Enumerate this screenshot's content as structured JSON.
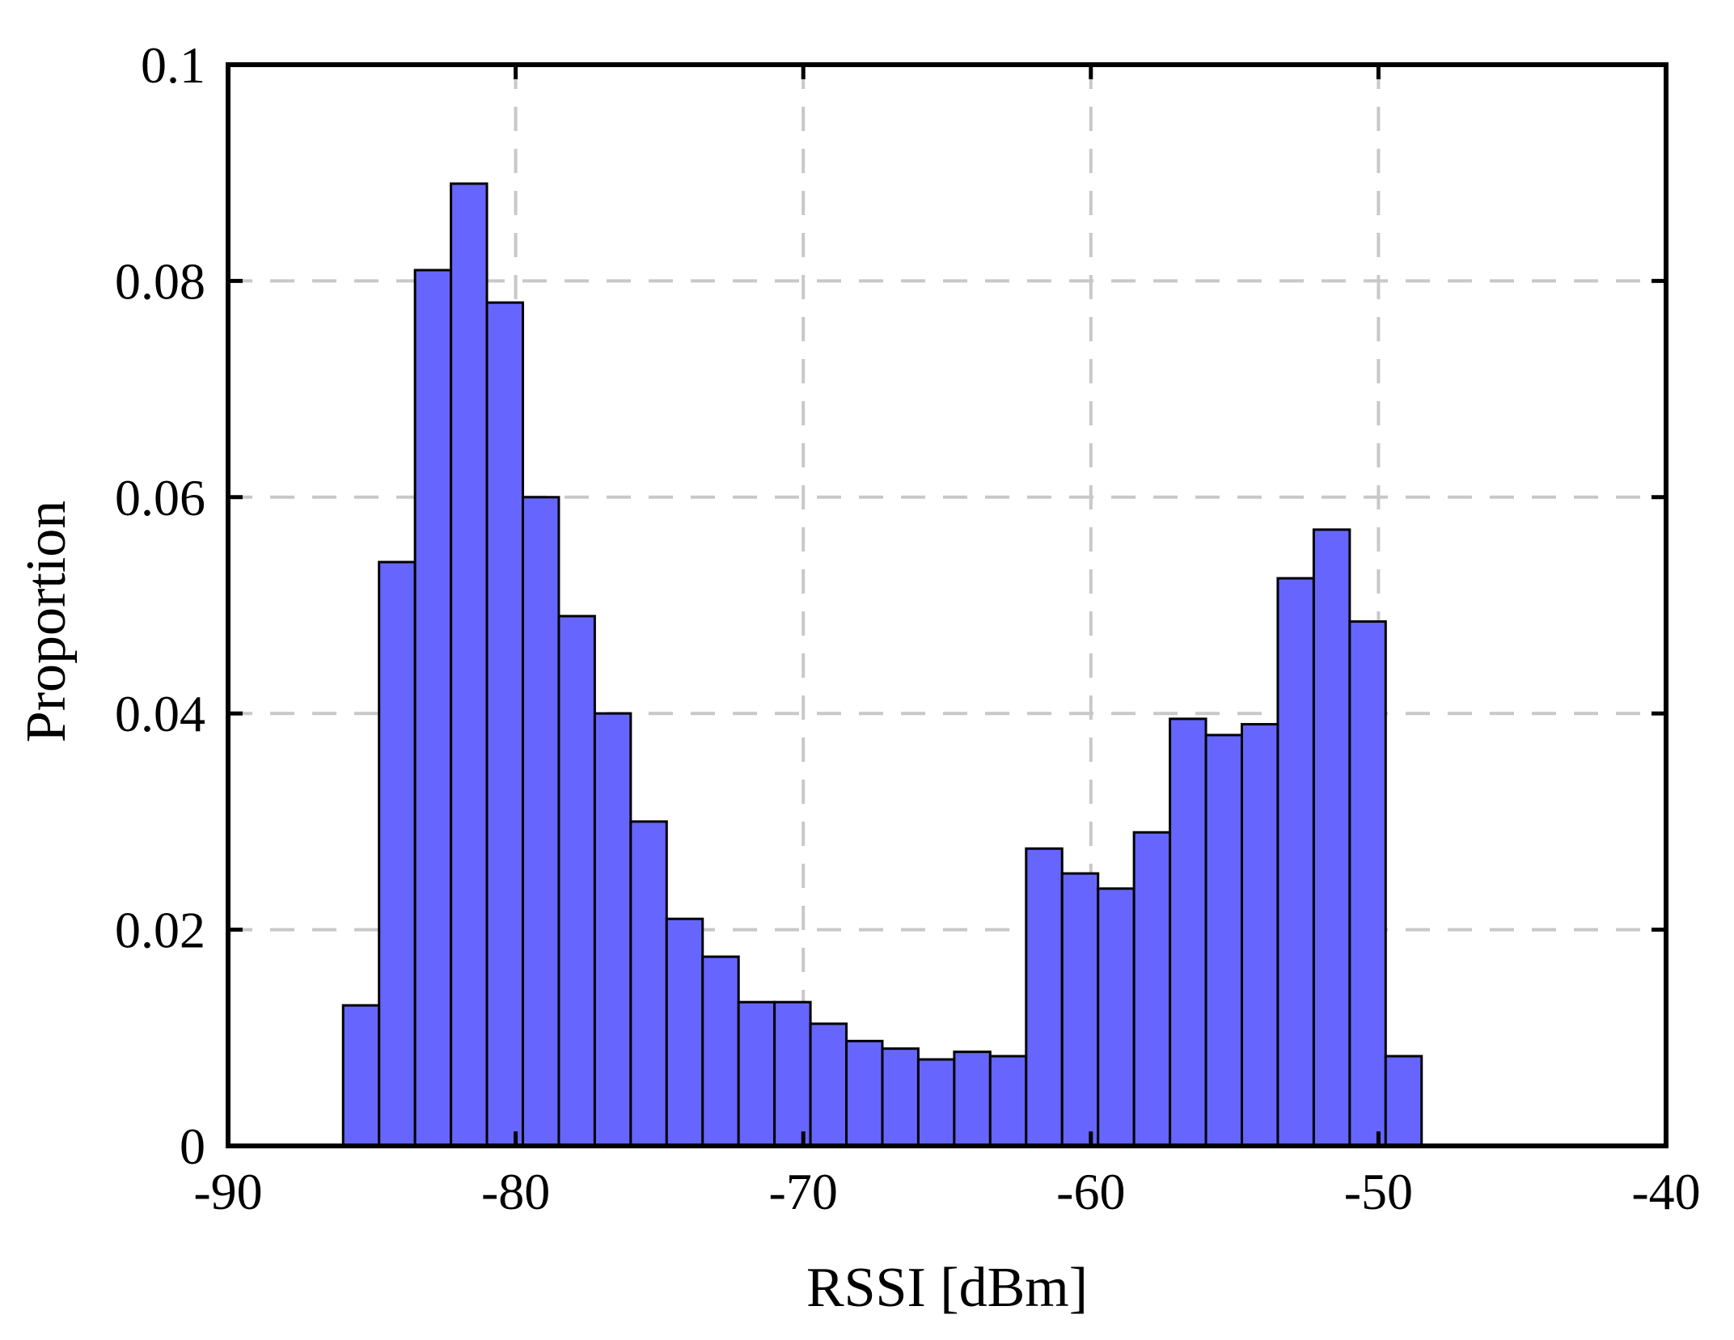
{
  "chart_data": {
    "type": "bar",
    "title": "",
    "xlabel": "RSSI [dBm]",
    "ylabel": "Proportion",
    "xlim": [
      -90,
      -40
    ],
    "ylim": [
      0,
      0.1
    ],
    "xticks": [
      -90,
      -80,
      -70,
      -60,
      -50,
      -40
    ],
    "yticks": [
      0,
      0.02,
      0.04,
      0.06,
      0.08,
      0.1
    ],
    "xtick_labels": [
      "-90",
      "-80",
      "-70",
      "-60",
      "-50",
      "-40"
    ],
    "ytick_labels": [
      "0",
      "0.02",
      "0.04",
      "0.06",
      "0.08",
      "0.1"
    ],
    "grid": true,
    "bin_width": 1.25,
    "bins": [
      {
        "x_start": -86.0,
        "value": 0.013
      },
      {
        "x_start": -84.75,
        "value": 0.054
      },
      {
        "x_start": -83.5,
        "value": 0.081
      },
      {
        "x_start": -82.25,
        "value": 0.089
      },
      {
        "x_start": -81.0,
        "value": 0.078
      },
      {
        "x_start": -79.75,
        "value": 0.06
      },
      {
        "x_start": -78.5,
        "value": 0.049
      },
      {
        "x_start": -77.25,
        "value": 0.04
      },
      {
        "x_start": -76.0,
        "value": 0.03
      },
      {
        "x_start": -74.75,
        "value": 0.021
      },
      {
        "x_start": -73.5,
        "value": 0.0175
      },
      {
        "x_start": -72.25,
        "value": 0.0133
      },
      {
        "x_start": -71.0,
        "value": 0.0133
      },
      {
        "x_start": -69.75,
        "value": 0.0113
      },
      {
        "x_start": -68.5,
        "value": 0.0097
      },
      {
        "x_start": -67.25,
        "value": 0.009
      },
      {
        "x_start": -66.0,
        "value": 0.008
      },
      {
        "x_start": -64.75,
        "value": 0.0087
      },
      {
        "x_start": -63.5,
        "value": 0.0083
      },
      {
        "x_start": -62.25,
        "value": 0.0275
      },
      {
        "x_start": -61.0,
        "value": 0.0252
      },
      {
        "x_start": -59.75,
        "value": 0.0238
      },
      {
        "x_start": -58.5,
        "value": 0.029
      },
      {
        "x_start": -57.25,
        "value": 0.0395
      },
      {
        "x_start": -56.0,
        "value": 0.038
      },
      {
        "x_start": -54.75,
        "value": 0.039
      },
      {
        "x_start": -53.5,
        "value": 0.0525
      },
      {
        "x_start": -52.25,
        "value": 0.057
      },
      {
        "x_start": -51.0,
        "value": 0.0485
      },
      {
        "x_start": -49.75,
        "value": 0.0083
      }
    ],
    "colors": {
      "bar_fill": "#6666ff",
      "bar_edge": "#000000",
      "grid": "#c8c8c8"
    }
  }
}
